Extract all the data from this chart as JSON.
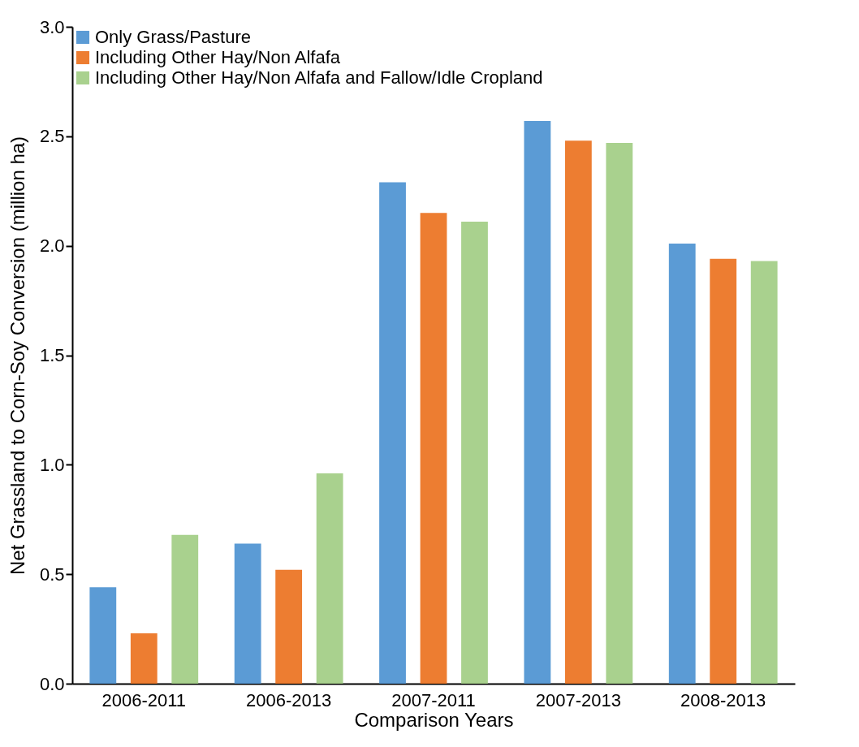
{
  "chart_data": {
    "type": "bar",
    "xlabel": "Comparison Years",
    "ylabel": "Net Grassland to Corn-Soy Conversion (million ha)",
    "categories": [
      "2006-2011",
      "2006-2013",
      "2007-2011",
      "2007-2013",
      "2008-2013"
    ],
    "series": [
      {
        "name": "Only Grass/Pasture",
        "color": "#5b9bd5",
        "values": [
          0.44,
          0.64,
          2.29,
          2.57,
          2.01
        ]
      },
      {
        "name": "Including Other Hay/Non Alfafa",
        "color": "#ed7d31",
        "values": [
          0.23,
          0.52,
          2.15,
          2.48,
          1.94
        ]
      },
      {
        "name": "Including Other Hay/Non Alfafa and Fallow/Idle Cropland",
        "color": "#a9d18e",
        "values": [
          0.68,
          0.96,
          2.11,
          2.47,
          1.93
        ]
      }
    ],
    "ylim": [
      0,
      3
    ],
    "yticks": [
      {
        "value": 0,
        "label": "0.0"
      },
      {
        "value": 0.5,
        "label": "0.5"
      },
      {
        "value": 1,
        "label": "1.0"
      },
      {
        "value": 1.5,
        "label": "1.5"
      },
      {
        "value": 2,
        "label": "2.0"
      },
      {
        "value": 2.5,
        "label": "2.5"
      },
      {
        "value": 3,
        "label": "3.0"
      }
    ],
    "grid": false,
    "legend": "top left"
  }
}
